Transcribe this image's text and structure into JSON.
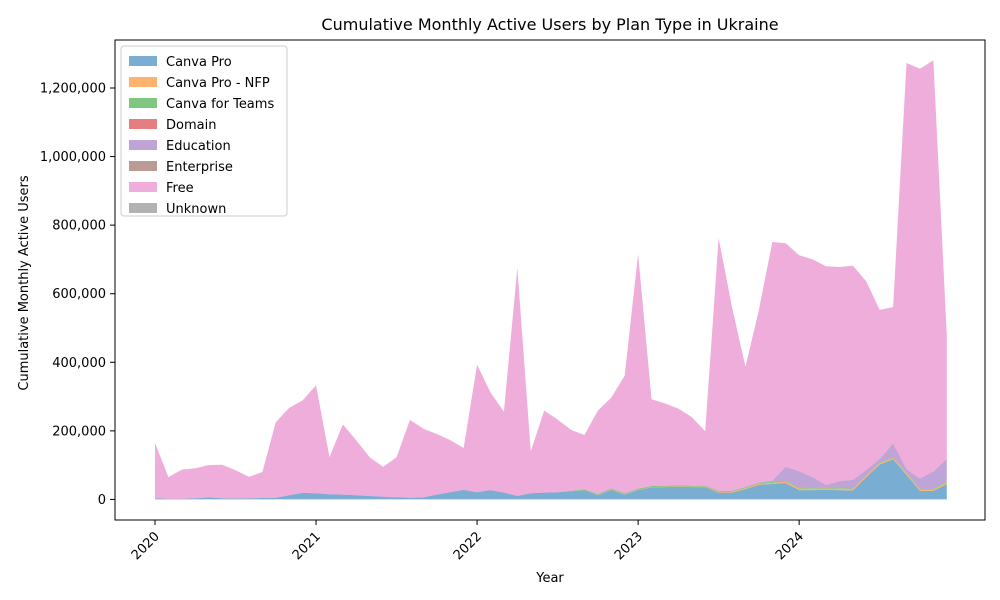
{
  "chart_data": {
    "type": "area",
    "stacked": true,
    "title": "Cumulative Monthly Active Users by Plan Type in Ukraine",
    "xlabel": "Year",
    "ylabel": "Cumulative Monthly Active Users",
    "ylim": [
      -60000,
      1340000
    ],
    "y_ticks": [
      0,
      200000,
      400000,
      600000,
      800000,
      1000000,
      1200000
    ],
    "y_tick_labels": [
      "0",
      "200,000",
      "400,000",
      "600,000",
      "800,000",
      "1,000,000",
      "1,200,000"
    ],
    "x_ticks": [
      "2020-01",
      "2021-01",
      "2022-01",
      "2023-01",
      "2024-01"
    ],
    "x_tick_labels": [
      "2020",
      "2021",
      "2022",
      "2023",
      "2024"
    ],
    "legend_position": "upper left",
    "x": [
      "2020-01",
      "2020-02",
      "2020-03",
      "2020-04",
      "2020-05",
      "2020-06",
      "2020-07",
      "2020-08",
      "2020-09",
      "2020-10",
      "2020-11",
      "2020-12",
      "2021-01",
      "2021-02",
      "2021-03",
      "2021-04",
      "2021-05",
      "2021-06",
      "2021-07",
      "2021-08",
      "2021-09",
      "2021-10",
      "2021-11",
      "2021-12",
      "2022-01",
      "2022-02",
      "2022-03",
      "2022-04",
      "2022-05",
      "2022-06",
      "2022-07",
      "2022-08",
      "2022-09",
      "2022-10",
      "2022-11",
      "2022-12",
      "2023-01",
      "2023-02",
      "2023-03",
      "2023-04",
      "2023-05",
      "2023-06",
      "2023-07",
      "2023-08",
      "2023-09",
      "2023-10",
      "2023-11",
      "2023-12",
      "2024-01",
      "2024-02",
      "2024-03",
      "2024-04",
      "2024-05",
      "2024-06",
      "2024-07",
      "2024-08",
      "2024-09",
      "2024-10",
      "2024-11",
      "2024-12"
    ],
    "series": [
      {
        "name": "Canva Pro",
        "color": "#1f77b4",
        "values": [
          3000,
          2000,
          2000,
          3000,
          6000,
          3000,
          3000,
          3000,
          4000,
          5000,
          12000,
          19000,
          18000,
          15000,
          14000,
          12000,
          10000,
          8000,
          6000,
          5000,
          6000,
          14000,
          21000,
          28000,
          21000,
          27000,
          20000,
          10000,
          18000,
          20000,
          21000,
          24000,
          26000,
          12000,
          28000,
          14000,
          27000,
          35000,
          36000,
          37000,
          36000,
          36000,
          20000,
          20000,
          30000,
          43000,
          45000,
          48000,
          27000,
          27000,
          28000,
          27000,
          26000,
          65000,
          102000,
          117000,
          72000,
          25000,
          25000,
          45000
        ]
      },
      {
        "name": "Canva Pro - NFP",
        "color": "#ff7f0e",
        "values": [
          0,
          0,
          0,
          0,
          0,
          0,
          0,
          0,
          0,
          0,
          0,
          0,
          0,
          0,
          0,
          0,
          0,
          0,
          0,
          0,
          0,
          0,
          0,
          0,
          0,
          0,
          0,
          0,
          0,
          0,
          0,
          0,
          0,
          1000,
          1000,
          1000,
          1000,
          1000,
          1000,
          1000,
          1000,
          1000,
          2000,
          2000,
          3000,
          3000,
          3000,
          4000,
          5000,
          4000,
          4000,
          4000,
          4000,
          4000,
          4000,
          4000,
          4000,
          4000,
          4000,
          5000
        ]
      },
      {
        "name": "Canva for Teams",
        "color": "#2ca02c",
        "values": [
          0,
          0,
          0,
          0,
          0,
          0,
          0,
          0,
          0,
          0,
          0,
          0,
          0,
          0,
          0,
          0,
          0,
          0,
          0,
          0,
          0,
          0,
          0,
          0,
          0,
          0,
          0,
          0,
          0,
          0,
          0,
          1000,
          3000,
          3000,
          3000,
          3000,
          3000,
          3000,
          3000,
          3000,
          3000,
          3000,
          3000,
          3000,
          3000,
          3000,
          3000,
          3000,
          2000,
          2000,
          2000,
          2000,
          2000,
          2000,
          2000,
          2000,
          2000,
          2000,
          2000,
          3000
        ]
      },
      {
        "name": "Domain",
        "color": "#d62728",
        "values": [
          0,
          0,
          0,
          0,
          0,
          0,
          0,
          0,
          0,
          0,
          0,
          0,
          0,
          0,
          0,
          0,
          0,
          0,
          0,
          0,
          0,
          0,
          0,
          0,
          0,
          0,
          0,
          0,
          0,
          0,
          0,
          0,
          0,
          0,
          0,
          0,
          0,
          0,
          0,
          0,
          0,
          0,
          0,
          0,
          0,
          0,
          0,
          0,
          0,
          0,
          0,
          0,
          0,
          0,
          0,
          0,
          0,
          0,
          0,
          0
        ]
      },
      {
        "name": "Education",
        "color": "#9467bd",
        "values": [
          0,
          0,
          0,
          0,
          0,
          0,
          0,
          0,
          0,
          0,
          0,
          0,
          0,
          0,
          0,
          0,
          0,
          0,
          0,
          0,
          0,
          0,
          0,
          0,
          0,
          0,
          0,
          0,
          0,
          0,
          0,
          0,
          0,
          0,
          0,
          0,
          0,
          0,
          0,
          0,
          0,
          0,
          0,
          0,
          0,
          0,
          4000,
          40000,
          48000,
          32000,
          8000,
          20000,
          25000,
          15000,
          10000,
          40000,
          10000,
          30000,
          50000,
          65000
        ]
      },
      {
        "name": "Enterprise",
        "color": "#8c564b",
        "values": [
          0,
          0,
          0,
          0,
          0,
          0,
          0,
          0,
          0,
          0,
          0,
          0,
          0,
          0,
          0,
          0,
          0,
          0,
          0,
          0,
          0,
          0,
          0,
          0,
          0,
          0,
          0,
          0,
          0,
          0,
          0,
          0,
          0,
          0,
          0,
          0,
          0,
          0,
          0,
          0,
          0,
          0,
          0,
          0,
          0,
          0,
          0,
          0,
          0,
          0,
          0,
          0,
          0,
          0,
          0,
          0,
          0,
          0,
          0,
          0
        ]
      },
      {
        "name": "Free",
        "color": "#e377c2",
        "values": [
          162000,
          63000,
          85000,
          88000,
          94000,
          98000,
          82000,
          63000,
          76000,
          220000,
          255000,
          270000,
          315000,
          108000,
          205000,
          160000,
          113000,
          87000,
          117000,
          227000,
          200000,
          177000,
          152000,
          122000,
          372000,
          285000,
          236000,
          665000,
          122000,
          239000,
          212000,
          178000,
          159000,
          243000,
          265000,
          343000,
          685000,
          253000,
          240000,
          224000,
          200000,
          159000,
          737000,
          535000,
          351000,
          504000,
          696000,
          652000,
          630000,
          635000,
          638000,
          625000,
          625000,
          550000,
          435000,
          398000,
          1185000,
          1195000,
          1200000,
          360000
        ]
      },
      {
        "name": "Unknown",
        "color": "#7f7f7f",
        "values": [
          0,
          0,
          0,
          0,
          0,
          0,
          0,
          0,
          0,
          0,
          0,
          0,
          0,
          0,
          0,
          0,
          0,
          0,
          0,
          0,
          0,
          0,
          0,
          0,
          0,
          0,
          0,
          0,
          0,
          0,
          0,
          0,
          0,
          0,
          0,
          0,
          0,
          0,
          0,
          0,
          0,
          0,
          0,
          0,
          0,
          0,
          0,
          0,
          0,
          0,
          0,
          0,
          0,
          0,
          0,
          0,
          0,
          0,
          0,
          0
        ]
      }
    ]
  }
}
